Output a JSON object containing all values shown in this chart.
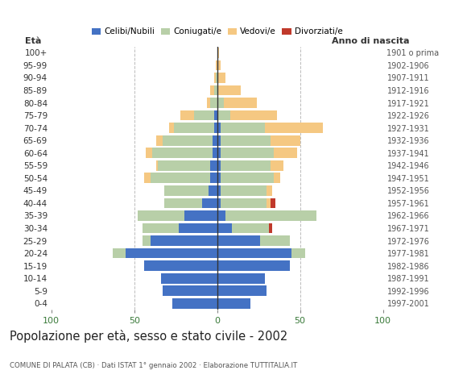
{
  "age_groups": [
    "0-4",
    "5-9",
    "10-14",
    "15-19",
    "20-24",
    "25-29",
    "30-34",
    "35-39",
    "40-44",
    "45-49",
    "50-54",
    "55-59",
    "60-64",
    "65-69",
    "70-74",
    "75-79",
    "80-84",
    "85-89",
    "90-94",
    "95-99",
    "100+"
  ],
  "birth_years": [
    "1997-2001",
    "1992-1996",
    "1987-1991",
    "1982-1986",
    "1977-1981",
    "1972-1976",
    "1967-1971",
    "1962-1966",
    "1957-1961",
    "1952-1956",
    "1947-1951",
    "1942-1946",
    "1937-1941",
    "1932-1936",
    "1927-1931",
    "1922-1926",
    "1917-1921",
    "1912-1916",
    "1907-1911",
    "1902-1906",
    "1901 o prima"
  ],
  "males": {
    "celibe": [
      27,
      33,
      34,
      44,
      55,
      40,
      23,
      20,
      9,
      5,
      4,
      4,
      3,
      3,
      2,
      2,
      0,
      0,
      0,
      0,
      0
    ],
    "coniugato": [
      0,
      0,
      0,
      0,
      8,
      5,
      22,
      28,
      23,
      27,
      36,
      32,
      36,
      30,
      24,
      12,
      4,
      2,
      1,
      0,
      0
    ],
    "vedovo": [
      0,
      0,
      0,
      0,
      0,
      0,
      0,
      0,
      0,
      0,
      4,
      1,
      4,
      4,
      3,
      8,
      2,
      2,
      1,
      1,
      0
    ],
    "divorziato": [
      0,
      0,
      0,
      0,
      0,
      0,
      0,
      0,
      0,
      0,
      0,
      0,
      0,
      0,
      0,
      0,
      0,
      0,
      0,
      0,
      0
    ]
  },
  "females": {
    "celibe": [
      20,
      30,
      29,
      44,
      45,
      26,
      9,
      5,
      2,
      2,
      2,
      2,
      2,
      2,
      2,
      0,
      0,
      0,
      0,
      0,
      0
    ],
    "coniugato": [
      0,
      0,
      0,
      0,
      8,
      18,
      22,
      55,
      28,
      28,
      32,
      30,
      32,
      30,
      27,
      8,
      4,
      0,
      0,
      0,
      0
    ],
    "vedovo": [
      0,
      0,
      0,
      0,
      0,
      0,
      0,
      0,
      2,
      3,
      4,
      8,
      14,
      18,
      35,
      28,
      20,
      14,
      5,
      2,
      1
    ],
    "divorziato": [
      0,
      0,
      0,
      0,
      0,
      0,
      2,
      0,
      3,
      0,
      0,
      0,
      0,
      0,
      0,
      0,
      0,
      0,
      0,
      0,
      0
    ]
  },
  "color_celibe": "#4472c4",
  "color_coniugato": "#b8cfa8",
  "color_vedovo": "#f5c882",
  "color_divorziato": "#c0392b",
  "title": "Popolazione per età, sesso e stato civile - 2002",
  "subtitle": "COMUNE DI PALATA (CB) · Dati ISTAT 1° gennaio 2002 · Elaborazione TUTTITALIA.IT",
  "xlim": 100,
  "background_color": "#ffffff"
}
